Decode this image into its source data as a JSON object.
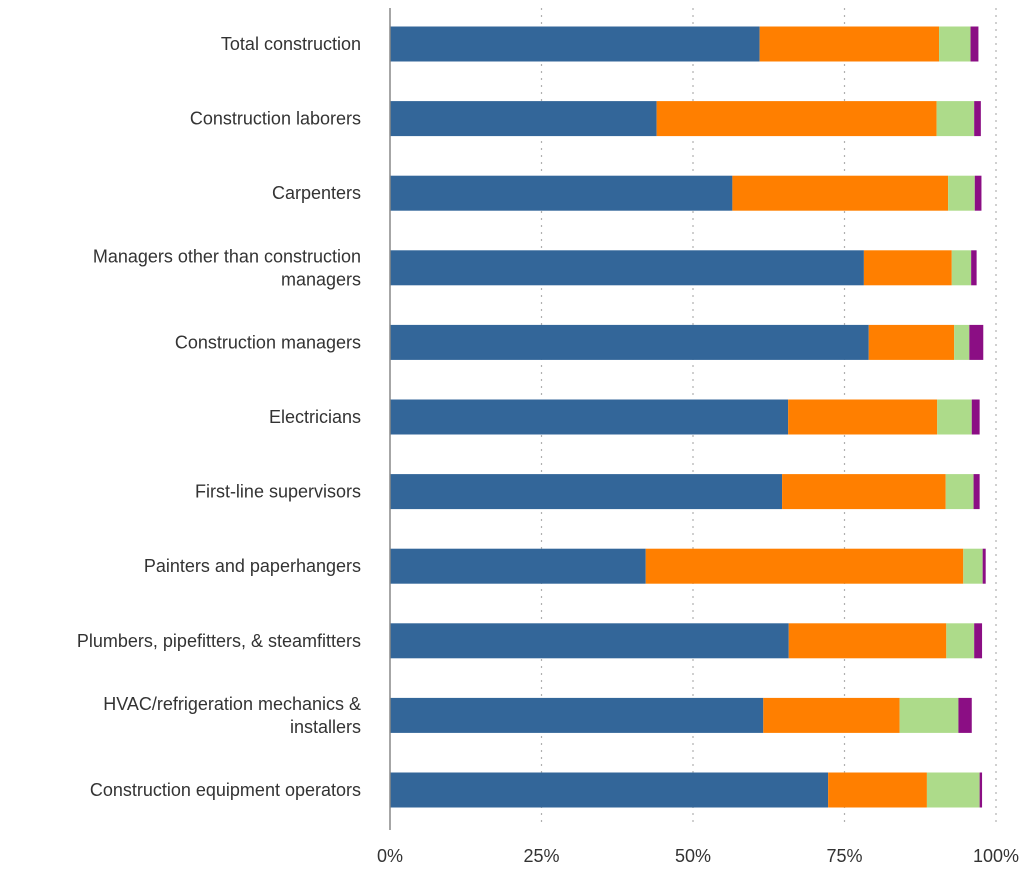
{
  "chart_data": {
    "type": "bar",
    "orientation": "horizontal",
    "stacked": true,
    "title": "",
    "xlabel": "",
    "ylabel": "",
    "xlim": [
      0,
      100
    ],
    "x_ticks": [
      "0%",
      "25%",
      "50%",
      "75%",
      "100%"
    ],
    "grid": true,
    "legend": "none",
    "categories": [
      [
        "Total construction"
      ],
      [
        "Construction laborers"
      ],
      [
        "Carpenters"
      ],
      [
        "Managers other than construction",
        "managers"
      ],
      [
        "Construction managers"
      ],
      [
        "Electricians"
      ],
      [
        "First-line supervisors"
      ],
      [
        "Painters and paperhangers"
      ],
      [
        "Plumbers, pipefitters, & steamfitters"
      ],
      [
        "HVAC/refrigeration mechanics &",
        "installers"
      ],
      [
        "Construction equipment operators"
      ]
    ],
    "series": [
      {
        "color": "#336699",
        "values": [
          61,
          44,
          56.5,
          78.2,
          79,
          65.7,
          64.7,
          42.2,
          65.8,
          61.6,
          72.3
        ]
      },
      {
        "color": "#FF7F00",
        "values": [
          29.6,
          46.2,
          35.6,
          14.5,
          14.1,
          24.6,
          27,
          52.4,
          26,
          22.5,
          16.3
        ]
      },
      {
        "color": "#ADDB8A",
        "values": [
          5.2,
          6.2,
          4.4,
          3.2,
          2.5,
          5.7,
          4.6,
          3.2,
          4.6,
          9.7,
          8.7
        ]
      },
      {
        "color": "#8B0E84",
        "values": [
          1.3,
          1.1,
          1.1,
          0.9,
          2.3,
          1.3,
          1,
          0.5,
          1.3,
          2.2,
          0.4
        ]
      }
    ]
  }
}
